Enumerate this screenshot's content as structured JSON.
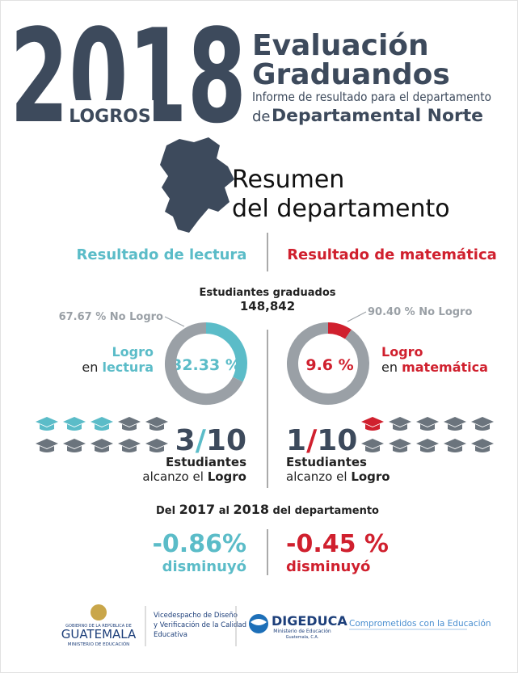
{
  "header": {
    "year": "2018",
    "badge": "LOGROS",
    "title_line1": "Evaluación",
    "title_line2": "Graduandos",
    "subtitle": "Informe de resultado para el departamento",
    "prefix": "de",
    "department": "Departamental Norte"
  },
  "summary": {
    "line1": "Resumen",
    "line2": "del departamento"
  },
  "graduates": {
    "label": "Estudiantes graduados",
    "value": "148,842"
  },
  "reading": {
    "heading": "Resultado de lectura",
    "logro": 32.33,
    "logro_label": "32.33 %",
    "no_logro": 67.67,
    "no_logro_label": "67.67 % No Logro",
    "logro_word": "Logro",
    "logro_prefix": "en",
    "subject": "lectura",
    "achieved": 3,
    "separator": "/",
    "total": 10,
    "students": "Estudiantes",
    "reached_prefix": "alcanzo el",
    "reached_word": "Logro",
    "change": "-0.86%",
    "change_word": "disminuyó"
  },
  "math": {
    "heading": "Resultado de matemática",
    "logro": 9.6,
    "logro_label": "9.6 %",
    "no_logro": 90.4,
    "no_logro_label": "90.40 % No Logro",
    "logro_word": "Logro",
    "logro_prefix": "en",
    "subject": "matemática",
    "achieved": 1,
    "separator": "/",
    "total": 10,
    "students": "Estudiantes",
    "reached_prefix": "alcanzo el",
    "reached_word": "Logro",
    "change": "-0.45 %",
    "change_word": "disminuyó"
  },
  "comparison": {
    "p1": "Del",
    "y1": "2017",
    "p2": "al",
    "y2": "2018",
    "p3": "del departamento"
  },
  "footer": {
    "gov_top": "GOBIERNO DE LA REPÚBLICA DE",
    "gov_name": "GUATEMALA",
    "gov_ministry": "MINISTERIO DE EDUCACIÓN",
    "vice_line1": "Vicedespacho de Diseño",
    "vice_line2": "y Verificación de la Calidad",
    "vice_line3": "Educativa",
    "digeduca": "DIGEDUCA",
    "digeduca_sub1": "Ministerio de Educación",
    "digeduca_sub2": "Guatemala, C.A.",
    "slogan": "Comprometidos con la Educación"
  }
}
